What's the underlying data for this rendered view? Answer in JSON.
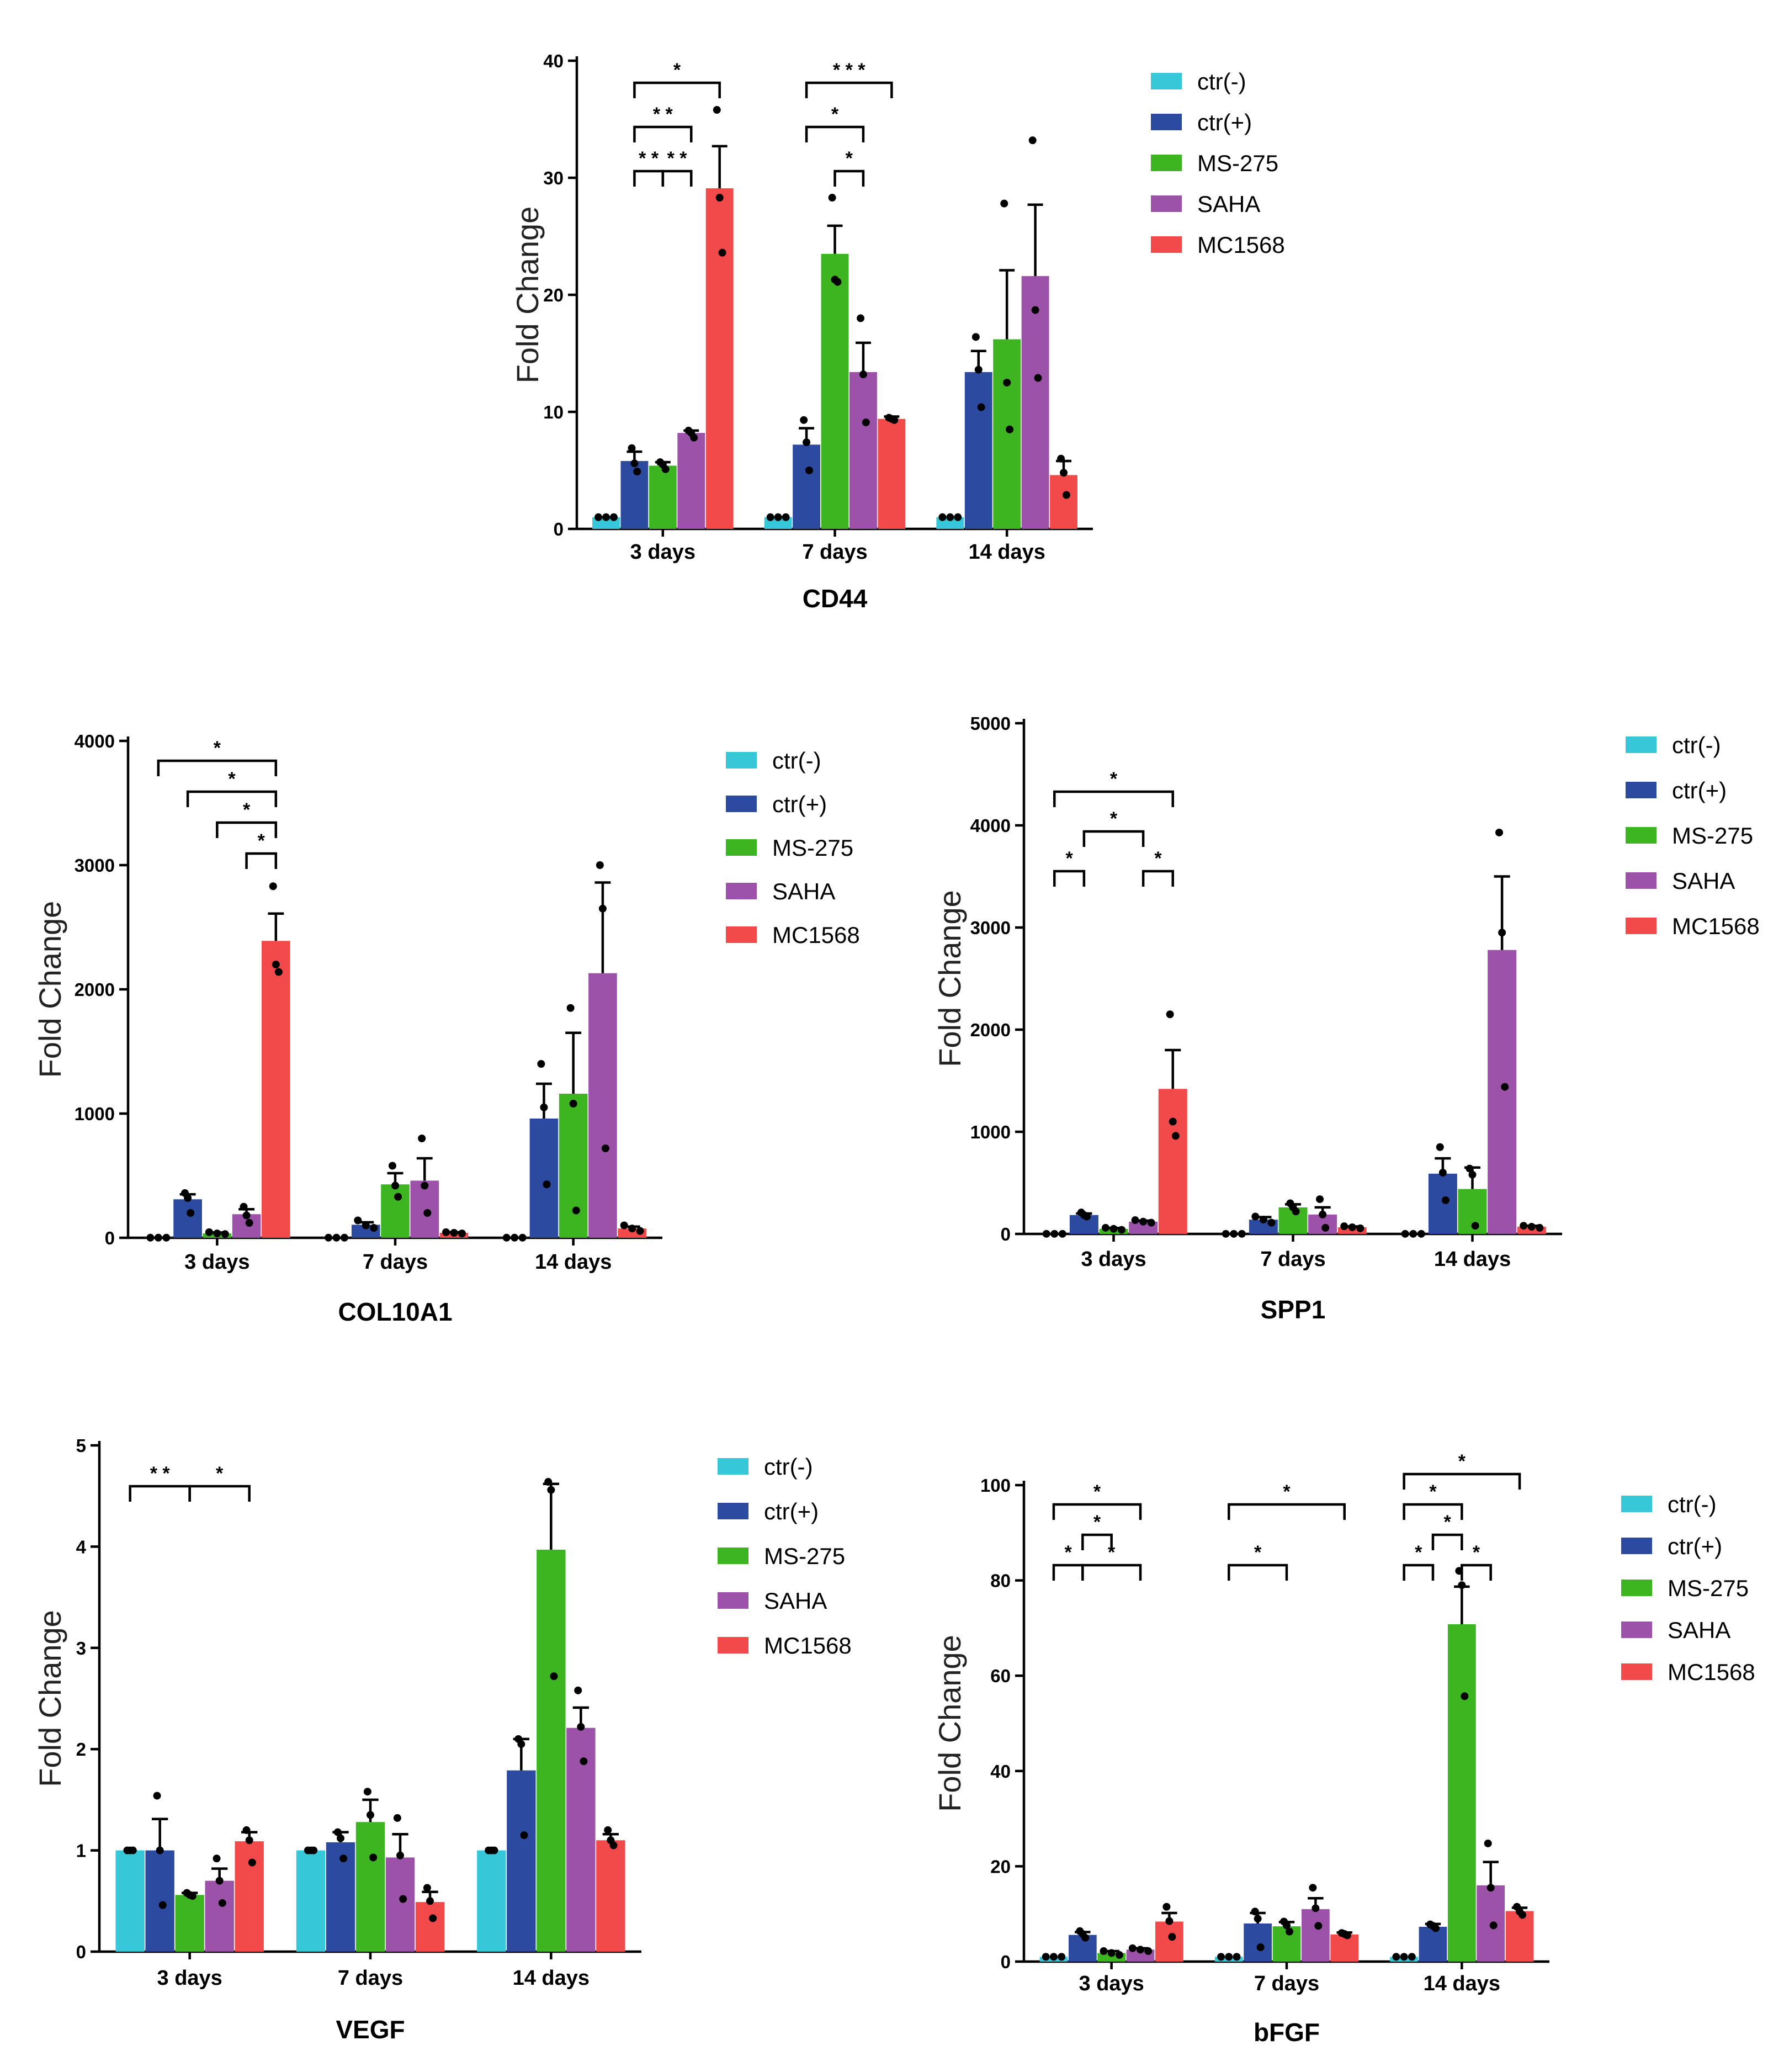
{
  "figure": {
    "series_names": [
      "ctr(-)",
      "ctr(+)",
      "MS-275",
      "SAHA",
      "MC1568"
    ],
    "colors": {
      "ctr(-)": "#36c8d8",
      "ctr(+)": "#2b4aa0",
      "MS-275": "#3cb520",
      "SAHA": "#9b52a8",
      "MC1568": "#f24a4a"
    },
    "ylabel": "Fold Change"
  },
  "chart_data": [
    {
      "type": "bar",
      "title": "CD44",
      "xlabel": "",
      "ylabel": "Fold Change",
      "categories": [
        "3 days",
        "7 days",
        "14 days"
      ],
      "ylim": [
        0,
        40
      ],
      "yticks": [
        0,
        10,
        20,
        30,
        40
      ],
      "series": [
        {
          "name": "ctr(-)",
          "values": [
            1,
            1,
            1
          ],
          "errors": [
            0,
            0,
            0
          ],
          "points": [
            [
              1,
              1,
              1
            ],
            [
              1,
              1,
              1
            ],
            [
              1,
              1,
              1
            ]
          ]
        },
        {
          "name": "ctr(+)",
          "values": [
            5.8,
            7.2,
            13.4
          ],
          "errors": [
            0.8,
            1.4,
            1.8
          ],
          "points": [
            [
              6.9,
              5.6,
              4.9
            ],
            [
              9.3,
              7.4,
              5.0
            ],
            [
              16.4,
              13.6,
              10.4
            ]
          ]
        },
        {
          "name": "MS-275",
          "values": [
            5.4,
            23.5,
            16.2
          ],
          "errors": [
            0.3,
            2.4,
            5.9
          ],
          "points": [
            [
              5.7,
              5.5,
              5.1
            ],
            [
              28.3,
              21.3,
              21.1
            ],
            [
              27.8,
              12.5,
              8.5
            ]
          ]
        },
        {
          "name": "SAHA",
          "values": [
            8.2,
            13.4,
            21.6
          ],
          "errors": [
            0.2,
            2.5,
            6.1
          ],
          "points": [
            [
              8.4,
              8.2,
              7.8
            ],
            [
              18.0,
              13.2,
              9.1
            ],
            [
              33.2,
              18.7,
              12.9
            ]
          ]
        },
        {
          "name": "MC1568",
          "values": [
            29.1,
            9.4,
            4.6
          ],
          "errors": [
            3.6,
            0.2,
            1.2
          ],
          "points": [
            [
              35.8,
              28.3,
              23.6
            ],
            [
              9.5,
              9.4,
              9.3
            ],
            [
              6.0,
              4.8,
              2.9
            ]
          ]
        }
      ],
      "significance": [
        {
          "group": 0,
          "from": 1,
          "to": 2,
          "level": 3,
          "label": "* *"
        },
        {
          "group": 0,
          "from": 2,
          "to": 3,
          "level": 3,
          "label": "* *"
        },
        {
          "group": 0,
          "from": 1,
          "to": 3,
          "level": 2,
          "label": "* *"
        },
        {
          "group": 0,
          "from": 1,
          "to": 4,
          "level": 1,
          "label": "*"
        },
        {
          "group": 1,
          "from": 2,
          "to": 3,
          "level": 3,
          "label": "*"
        },
        {
          "group": 1,
          "from": 1,
          "to": 3,
          "level": 2,
          "label": "*"
        },
        {
          "group": 1,
          "from": 1,
          "to": 4,
          "level": 1,
          "label": "* * *"
        }
      ],
      "legend_position": "right"
    },
    {
      "type": "bar",
      "title": "COL10A1",
      "xlabel": "",
      "ylabel": "Fold Change",
      "categories": [
        "3 days",
        "7 days",
        "14 days"
      ],
      "ylim": [
        0,
        4000
      ],
      "yticks": [
        0,
        1000,
        2000,
        3000,
        4000
      ],
      "series": [
        {
          "name": "ctr(-)",
          "values": [
            1,
            1,
            1
          ],
          "errors": [
            0,
            0,
            0
          ],
          "points": [
            [
              1,
              1,
              1
            ],
            [
              1,
              1,
              1
            ],
            [
              1,
              1,
              1
            ]
          ]
        },
        {
          "name": "ctr(+)",
          "values": [
            310,
            105,
            960
          ],
          "errors": [
            40,
            20,
            280
          ],
          "points": [
            [
              360,
              320,
              200
            ],
            [
              140,
              100,
              80
            ],
            [
              1400,
              1050,
              430
            ]
          ]
        },
        {
          "name": "MS-275",
          "values": [
            35,
            430,
            1160
          ],
          "errors": [
            8,
            90,
            490
          ],
          "points": [
            [
              45,
              35,
              30
            ],
            [
              580,
              420,
              330
            ],
            [
              1850,
              1080,
              220
            ]
          ]
        },
        {
          "name": "SAHA",
          "values": [
            190,
            460,
            2130
          ],
          "errors": [
            40,
            180,
            730
          ],
          "points": [
            [
              250,
              180,
              120
            ],
            [
              800,
              420,
              200
            ],
            [
              3000,
              2650,
              720
            ]
          ]
        },
        {
          "name": "MC1568",
          "values": [
            2390,
            40,
            75
          ],
          "errors": [
            220,
            5,
            15
          ],
          "points": [
            [
              2830,
              2200,
              2140
            ],
            [
              45,
              40,
              35
            ],
            [
              100,
              75,
              55
            ]
          ]
        }
      ],
      "significance": [
        {
          "group": 0,
          "from": 3,
          "to": 4,
          "level": 4,
          "label": "*"
        },
        {
          "group": 0,
          "from": 2,
          "to": 4,
          "level": 3,
          "label": "*"
        },
        {
          "group": 0,
          "from": 1,
          "to": 4,
          "level": 2,
          "label": "*"
        },
        {
          "group": 0,
          "from": 0,
          "to": 4,
          "level": 1,
          "label": "*"
        }
      ],
      "legend_position": "right"
    },
    {
      "type": "bar",
      "title": "SPP1",
      "xlabel": "",
      "ylabel": "Fold Change",
      "categories": [
        "3 days",
        "7 days",
        "14 days"
      ],
      "ylim": [
        0,
        5000
      ],
      "yticks": [
        0,
        1000,
        2000,
        3000,
        4000,
        5000
      ],
      "series": [
        {
          "name": "ctr(-)",
          "values": [
            1,
            1,
            1
          ],
          "errors": [
            0,
            0,
            0
          ],
          "points": [
            [
              1,
              1,
              1
            ],
            [
              1,
              1,
              1
            ],
            [
              1,
              1,
              1
            ]
          ]
        },
        {
          "name": "ctr(+)",
          "values": [
            185,
            140,
            590
          ],
          "errors": [
            15,
            25,
            150
          ],
          "points": [
            [
              210,
              185,
              170
            ],
            [
              170,
              140,
              110
            ],
            [
              850,
              600,
              330
            ]
          ]
        },
        {
          "name": "MS-275",
          "values": [
            50,
            260,
            440
          ],
          "errors": [
            8,
            30,
            210
          ],
          "points": [
            [
              60,
              50,
              40
            ],
            [
              300,
              260,
              220
            ],
            [
              640,
              580,
              80
            ]
          ]
        },
        {
          "name": "SAHA",
          "values": [
            120,
            190,
            2780
          ],
          "errors": [
            10,
            70,
            720
          ],
          "points": [
            [
              135,
              120,
              110
            ],
            [
              340,
              190,
              60
            ],
            [
              3930,
              2950,
              1440
            ]
          ]
        },
        {
          "name": "MC1568",
          "values": [
            1420,
            65,
            70
          ],
          "errors": [
            380,
            8,
            10
          ],
          "points": [
            [
              2150,
              1100,
              960
            ],
            [
              75,
              65,
              55
            ],
            [
              80,
              70,
              60
            ]
          ]
        }
      ],
      "significance": [
        {
          "group": 0,
          "from": 0,
          "to": 1,
          "level": 3,
          "label": "*"
        },
        {
          "group": 0,
          "from": 3,
          "to": 4,
          "level": 3,
          "label": "*"
        },
        {
          "group": 0,
          "from": 1,
          "to": 3,
          "level": 2,
          "label": "*"
        },
        {
          "group": 0,
          "from": 0,
          "to": 4,
          "level": 1,
          "label": "*"
        }
      ],
      "legend_position": "right"
    },
    {
      "type": "bar",
      "title": "VEGF",
      "xlabel": "",
      "ylabel": "Fold Change",
      "categories": [
        "3 days",
        "7 days",
        "14 days"
      ],
      "ylim": [
        0,
        5
      ],
      "yticks": [
        0,
        1,
        2,
        3,
        4,
        5
      ],
      "series": [
        {
          "name": "ctr(-)",
          "values": [
            1.0,
            1.0,
            1.0
          ],
          "errors": [
            0,
            0,
            0
          ],
          "points": [
            [
              1,
              1,
              1
            ],
            [
              1,
              1,
              1
            ],
            [
              1,
              1,
              1
            ]
          ]
        },
        {
          "name": "ctr(+)",
          "values": [
            1.0,
            1.08,
            1.79
          ],
          "errors": [
            0.31,
            0.1,
            0.31
          ],
          "points": [
            [
              1.54,
              1.0,
              0.46
            ],
            [
              1.18,
              1.12,
              0.92
            ],
            [
              2.1,
              2.05,
              1.15
            ]
          ]
        },
        {
          "name": "MS-275",
          "values": [
            0.56,
            1.28,
            3.97
          ],
          "errors": [
            0.02,
            0.22,
            0.65
          ],
          "points": [
            [
              0.58,
              0.56,
              0.55
            ],
            [
              1.58,
              1.35,
              0.93
            ],
            [
              4.64,
              4.56,
              2.72
            ]
          ]
        },
        {
          "name": "SAHA",
          "values": [
            0.7,
            0.93,
            2.21
          ],
          "errors": [
            0.12,
            0.23,
            0.2
          ],
          "points": [
            [
              0.92,
              0.7,
              0.48
            ],
            [
              1.32,
              0.95,
              0.52
            ],
            [
              2.58,
              2.22,
              1.88
            ]
          ]
        },
        {
          "name": "MC1568",
          "values": [
            1.09,
            0.49,
            1.1
          ],
          "errors": [
            0.09,
            0.1,
            0.06
          ],
          "points": [
            [
              1.2,
              1.1,
              0.88
            ],
            [
              0.63,
              0.5,
              0.33
            ],
            [
              1.2,
              1.1,
              1.05
            ]
          ]
        }
      ],
      "significance": [
        {
          "group": 0,
          "from": 0,
          "to": 2,
          "level": 1,
          "label": "* *"
        },
        {
          "group": 0,
          "from": 2,
          "to": 4,
          "level": 1,
          "label": "*"
        }
      ],
      "legend_position": "right"
    },
    {
      "type": "bar",
      "title": "bFGF",
      "xlabel": "",
      "ylabel": "Fold Change",
      "categories": [
        "3 days",
        "7 days",
        "14 days"
      ],
      "ylim": [
        0,
        100
      ],
      "yticks": [
        0,
        20,
        40,
        60,
        80,
        100
      ],
      "series": [
        {
          "name": "ctr(-)",
          "values": [
            1,
            1,
            1
          ],
          "errors": [
            0,
            0,
            0
          ],
          "points": [
            [
              1,
              1,
              1
            ],
            [
              1,
              1,
              1
            ],
            [
              1,
              1,
              1
            ]
          ]
        },
        {
          "name": "ctr(+)",
          "values": [
            5.6,
            8.0,
            7.3
          ],
          "errors": [
            0.6,
            2.2,
            0.6
          ],
          "points": [
            [
              6.4,
              5.8,
              5.0
            ],
            [
              10.5,
              9.0,
              3.0
            ],
            [
              7.8,
              7.5,
              7.0
            ]
          ]
        },
        {
          "name": "MS-275",
          "values": [
            1.8,
            7.4,
            70.8
          ],
          "errors": [
            0.4,
            0.9,
            7.9
          ],
          "points": [
            [
              2.2,
              1.8,
              1.4
            ],
            [
              8.4,
              7.6,
              6.3
            ],
            [
              82,
              79,
              55.7
            ]
          ]
        },
        {
          "name": "SAHA",
          "values": [
            2.5,
            11.0,
            16.0
          ],
          "errors": [
            0.3,
            2.3,
            4.9
          ],
          "points": [
            [
              2.8,
              2.5,
              2.2
            ],
            [
              15.5,
              11.2,
              7.5
            ],
            [
              24.8,
              15.5,
              7.6
            ]
          ]
        },
        {
          "name": "MC1568",
          "values": [
            8.4,
            5.7,
            10.6
          ],
          "errors": [
            1.8,
            0.4,
            0.7
          ],
          "points": [
            [
              11.5,
              8.5,
              5.2
            ],
            [
              6.0,
              5.8,
              5.5
            ],
            [
              11.5,
              10.5,
              9.8
            ]
          ]
        }
      ],
      "significance": [
        {
          "group": 0,
          "from": 0,
          "to": 1,
          "level": 4,
          "label": "*"
        },
        {
          "group": 0,
          "from": 1,
          "to": 3,
          "level": 4,
          "label": "*"
        },
        {
          "group": 0,
          "from": 1,
          "to": 2,
          "level": 3,
          "label": "*"
        },
        {
          "group": 0,
          "from": 0,
          "to": 3,
          "level": 2,
          "label": "*"
        },
        {
          "group": 1,
          "from": 0,
          "to": 2,
          "level": 4,
          "label": "*"
        },
        {
          "group": 1,
          "from": 0,
          "to": 4,
          "level": 2,
          "label": "*"
        },
        {
          "group": 2,
          "from": 0,
          "to": 1,
          "level": 4,
          "label": "*"
        },
        {
          "group": 2,
          "from": 2,
          "to": 3,
          "level": 4,
          "label": "*"
        },
        {
          "group": 2,
          "from": 1,
          "to": 2,
          "level": 3,
          "label": "*"
        },
        {
          "group": 2,
          "from": 0,
          "to": 2,
          "level": 2,
          "label": "*"
        },
        {
          "group": 2,
          "from": 0,
          "to": 4,
          "level": 1,
          "label": "*"
        }
      ],
      "legend_position": "right"
    }
  ]
}
